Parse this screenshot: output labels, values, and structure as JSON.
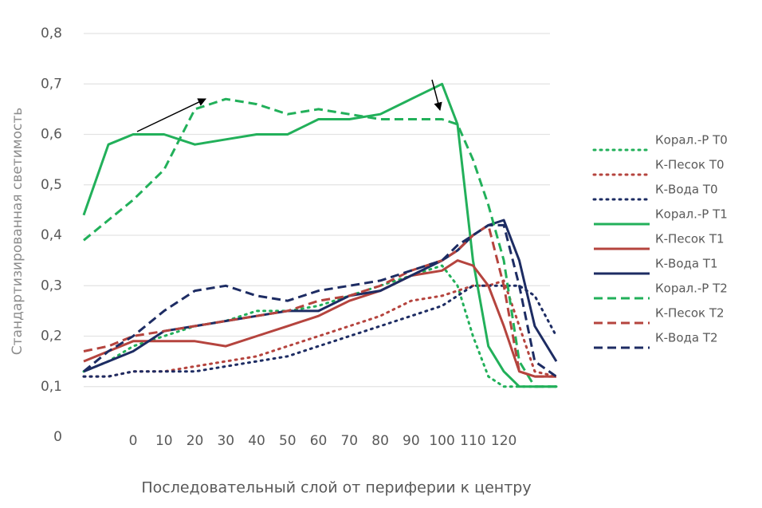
{
  "chart_data": {
    "type": "line",
    "xlabel": "Последовательный слой от периферии к центру",
    "ylabel": "Стандартизированная светимость",
    "x": [
      -16,
      -8,
      0,
      10,
      20,
      30,
      40,
      50,
      60,
      70,
      80,
      90,
      100,
      105,
      110,
      115,
      120,
      125,
      130,
      137
    ],
    "xlim": [
      -16,
      137
    ],
    "xticks": [
      0,
      10,
      20,
      30,
      40,
      50,
      60,
      70,
      80,
      90,
      100,
      110,
      120
    ],
    "ylim": [
      0,
      0.8
    ],
    "yticks": [
      0,
      {
        "value": 0.1,
        "label": "0,1"
      },
      {
        "value": 0.2,
        "label": "0,2"
      },
      {
        "value": 0.3,
        "label": "0,3"
      },
      {
        "value": 0.4,
        "label": "0,4"
      },
      {
        "value": 0.5,
        "label": "0,5"
      },
      {
        "value": 0.6,
        "label": "0,6"
      },
      {
        "value": 0.7,
        "label": "0,7"
      },
      {
        "value": 0.8,
        "label": "0,8"
      }
    ],
    "grid": true,
    "legend": "right",
    "series": [
      {
        "name": "Корал.-Р Т0",
        "color": "#22b05a",
        "style": "dotted",
        "values": [
          0.13,
          0.15,
          0.18,
          0.2,
          0.22,
          0.23,
          0.25,
          0.25,
          0.26,
          0.28,
          0.3,
          0.32,
          0.34,
          0.3,
          0.2,
          0.12,
          0.1,
          0.1,
          0.1,
          0.1
        ]
      },
      {
        "name": "К-Песок Т0",
        "color": "#b5443e",
        "style": "dotted",
        "values": [
          0.12,
          0.12,
          0.13,
          0.13,
          0.14,
          0.15,
          0.16,
          0.18,
          0.2,
          0.22,
          0.24,
          0.27,
          0.28,
          0.29,
          0.3,
          0.3,
          0.31,
          0.22,
          0.13,
          0.12
        ]
      },
      {
        "name": "К-Вода Т0",
        "color": "#1d2c63",
        "style": "dotted",
        "values": [
          0.12,
          0.12,
          0.13,
          0.13,
          0.13,
          0.14,
          0.15,
          0.16,
          0.18,
          0.2,
          0.22,
          0.24,
          0.26,
          0.28,
          0.3,
          0.3,
          0.3,
          0.3,
          0.28,
          0.2
        ]
      },
      {
        "name": "Корал.-Р Т1",
        "color": "#22b05a",
        "style": "solid",
        "values": [
          0.44,
          0.58,
          0.6,
          0.6,
          0.58,
          0.59,
          0.6,
          0.6,
          0.63,
          0.63,
          0.64,
          0.67,
          0.7,
          0.62,
          0.35,
          0.18,
          0.13,
          0.1,
          0.1,
          0.1
        ]
      },
      {
        "name": "К-Песок Т1",
        "color": "#b5443e",
        "style": "solid",
        "values": [
          0.15,
          0.17,
          0.19,
          0.19,
          0.19,
          0.18,
          0.2,
          0.22,
          0.24,
          0.27,
          0.29,
          0.32,
          0.33,
          0.35,
          0.34,
          0.3,
          0.22,
          0.13,
          0.12,
          0.12
        ]
      },
      {
        "name": "К-Вода Т1",
        "color": "#1d2c63",
        "style": "solid",
        "values": [
          0.13,
          0.15,
          0.17,
          0.21,
          0.22,
          0.23,
          0.24,
          0.25,
          0.25,
          0.28,
          0.29,
          0.32,
          0.35,
          0.37,
          0.4,
          0.42,
          0.43,
          0.35,
          0.22,
          0.15
        ]
      },
      {
        "name": "Корал.-Р Т2",
        "color": "#22b05a",
        "style": "dashed",
        "values": [
          0.39,
          0.43,
          0.47,
          0.53,
          0.65,
          0.67,
          0.66,
          0.64,
          0.65,
          0.64,
          0.63,
          0.63,
          0.63,
          0.62,
          0.55,
          0.46,
          0.35,
          0.15,
          0.1,
          0.1
        ]
      },
      {
        "name": "К-Песок Т2",
        "color": "#b5443e",
        "style": "dashed",
        "values": [
          0.17,
          0.18,
          0.2,
          0.21,
          0.22,
          0.23,
          0.24,
          0.25,
          0.27,
          0.28,
          0.3,
          0.33,
          0.35,
          0.37,
          0.4,
          0.42,
          0.3,
          0.13,
          0.12,
          0.12
        ]
      },
      {
        "name": "К-Вода Т2",
        "color": "#1d2c63",
        "style": "dashed",
        "values": [
          0.13,
          0.17,
          0.2,
          0.25,
          0.29,
          0.3,
          0.28,
          0.27,
          0.29,
          0.3,
          0.31,
          0.33,
          0.35,
          0.38,
          0.4,
          0.42,
          0.42,
          0.3,
          0.15,
          0.12
        ]
      }
    ]
  }
}
